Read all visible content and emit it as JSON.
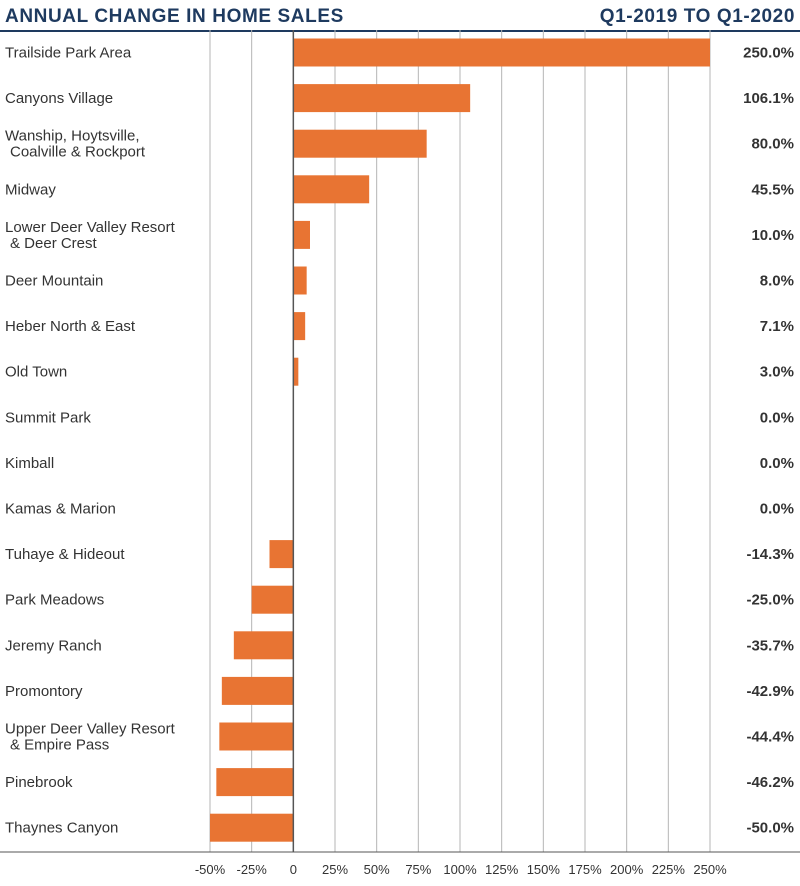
{
  "header": {
    "title": "ANNUAL CHANGE IN HOME SALES",
    "subtitle": "Q1-2019 TO Q1-2020"
  },
  "colors": {
    "title": "#1e3a5f",
    "bar": "#e87433",
    "text": "#333333",
    "grid": "#b5b5b5",
    "axis": "#555555"
  },
  "chart_data": {
    "type": "bar",
    "orientation": "horizontal",
    "title": "ANNUAL CHANGE IN HOME SALES",
    "subtitle": "Q1-2019 TO Q1-2020",
    "xlabel": "",
    "ylabel": "",
    "xlim": [
      -50,
      250
    ],
    "grid": true,
    "categories": [
      [
        "Trailside Park Area"
      ],
      [
        "Canyons Village"
      ],
      [
        "Wanship, Hoytsville,",
        "Coalville & Rockport"
      ],
      [
        "Midway"
      ],
      [
        "Lower Deer Valley Resort",
        "& Deer Crest"
      ],
      [
        "Deer Mountain"
      ],
      [
        "Heber North & East"
      ],
      [
        "Old Town"
      ],
      [
        "Summit Park"
      ],
      [
        "Kimball"
      ],
      [
        "Kamas & Marion"
      ],
      [
        "Tuhaye & Hideout"
      ],
      [
        "Park Meadows"
      ],
      [
        "Jeremy Ranch"
      ],
      [
        "Promontory"
      ],
      [
        "Upper Deer Valley Resort",
        "& Empire Pass"
      ],
      [
        "Pinebrook"
      ],
      [
        "Thaynes Canyon"
      ]
    ],
    "values": [
      250.0,
      106.1,
      80.0,
      45.5,
      10.0,
      8.0,
      7.1,
      3.0,
      0.0,
      0.0,
      0.0,
      -14.3,
      -25.0,
      -35.7,
      -42.9,
      -44.4,
      -46.2,
      -50.0
    ],
    "value_labels": [
      "250.0%",
      "106.1%",
      "80.0%",
      "45.5%",
      "10.0%",
      "8.0%",
      "7.1%",
      "3.0%",
      "0.0%",
      "0.0%",
      "0.0%",
      "-14.3%",
      "-25.0%",
      "-35.7%",
      "-42.9%",
      "-44.4%",
      "-46.2%",
      "-50.0%"
    ],
    "x_ticks": [
      -50,
      -25,
      0,
      25,
      50,
      75,
      100,
      125,
      150,
      175,
      200,
      225,
      250
    ],
    "x_tick_labels": [
      "-50%",
      "-25%",
      "0",
      "25%",
      "50%",
      "75%",
      "100%",
      "125%",
      "150%",
      "175%",
      "200%",
      "225%",
      "250%"
    ]
  }
}
